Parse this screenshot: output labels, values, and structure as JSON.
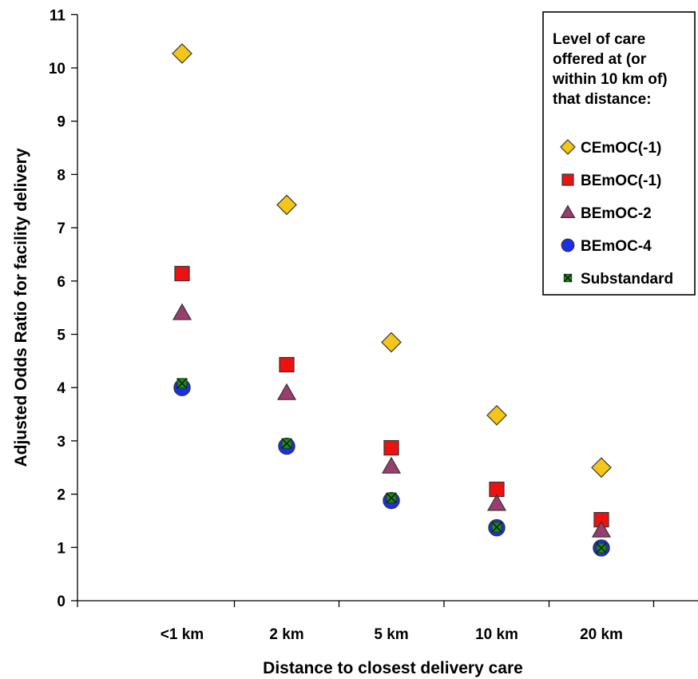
{
  "chart_data": {
    "type": "scatter",
    "xlabel": "Distance to closest delivery care",
    "ylabel": "Adjusted Odds Ratio for facility delivery",
    "categories": [
      "<1 km",
      "2 km",
      "5 km",
      "10 km",
      "20 km"
    ],
    "ylim": [
      0,
      11
    ],
    "yticks": [
      0,
      1,
      2,
      3,
      4,
      5,
      6,
      7,
      8,
      9,
      10,
      11
    ],
    "grid": false,
    "legend_position": "top-right",
    "legend_title_lines": [
      "Level of care",
      "offered at (or",
      "within 10 km of)",
      "that distance:"
    ],
    "series": [
      {
        "name": "CEmOC(-1)",
        "marker": "diamond",
        "color": "#f5c518",
        "values": [
          10.27,
          7.43,
          4.85,
          3.48,
          2.5
        ]
      },
      {
        "name": "BEmOC(-1)",
        "marker": "square",
        "color": "#ee1111",
        "values": [
          6.14,
          4.43,
          2.87,
          2.09,
          1.52
        ]
      },
      {
        "name": "BEmOC-2",
        "marker": "triangle",
        "color": "#9b3d6e",
        "values": [
          5.4,
          3.9,
          2.52,
          1.82,
          1.32
        ]
      },
      {
        "name": "BEmOC-4",
        "marker": "circle",
        "color": "#1a2ee8",
        "values": [
          4.0,
          2.9,
          1.88,
          1.37,
          0.99
        ]
      },
      {
        "name": "Substandard",
        "marker": "x-square",
        "color": "#1f8a1f",
        "values": [
          4.08,
          2.95,
          1.93,
          1.38,
          0.99
        ]
      }
    ]
  }
}
